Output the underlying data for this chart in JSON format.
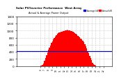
{
  "title": "Solar PV/Inverter Performance  West Array",
  "subtitle": "Actual & Average Power Output",
  "bar_color": "#ff0000",
  "avg_line_color": "#0000cd",
  "background_color": "#ffffff",
  "grid_color": "#cccccc",
  "legend_label1": "Actual kW",
  "legend_label2": "Average kW",
  "ylim": [
    0,
    1400
  ],
  "yticks": [
    0,
    200,
    400,
    600,
    800,
    1000,
    1200,
    1400
  ],
  "avg_value": 420,
  "bar_heights": [
    0,
    0,
    0,
    0,
    0,
    0,
    0,
    0,
    0,
    0,
    0,
    0,
    0,
    0,
    0,
    0,
    0,
    0,
    0,
    0,
    0,
    0,
    0,
    0,
    10,
    20,
    40,
    80,
    150,
    220,
    300,
    380,
    460,
    520,
    580,
    650,
    700,
    750,
    800,
    840,
    870,
    900,
    920,
    940,
    950,
    960,
    970,
    980,
    990,
    1000,
    1010,
    1020,
    1015,
    1010,
    1000,
    990,
    980,
    960,
    940,
    920,
    900,
    880,
    860,
    840,
    810,
    780,
    750,
    710,
    670,
    620,
    560,
    500,
    430,
    360,
    290,
    220,
    160,
    100,
    60,
    30,
    10,
    0,
    0,
    0,
    0,
    0,
    0,
    0,
    0,
    0,
    0,
    0,
    0,
    0,
    0,
    0,
    0
  ],
  "xtick_positions": [
    24,
    28,
    32,
    36,
    40,
    44,
    48,
    52,
    56,
    60,
    64,
    68,
    72,
    76,
    80,
    84,
    88
  ],
  "xtick_labels": [
    "6",
    "7",
    "8",
    "9",
    "10",
    "11",
    "12",
    "13",
    "14",
    "15",
    "16",
    "17",
    "18",
    "19",
    "20",
    "21",
    "22"
  ]
}
